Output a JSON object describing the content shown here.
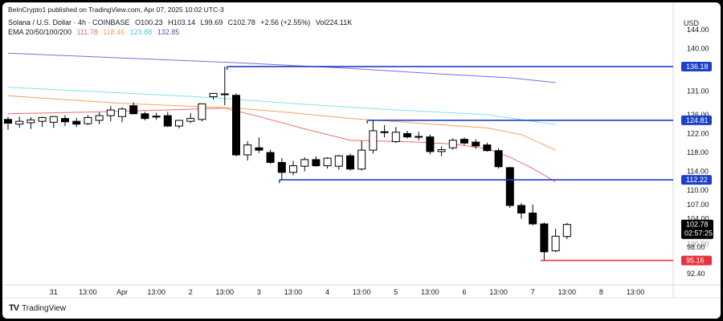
{
  "header": {
    "published": "BeInCrypto1 published on TradingView.com, Apr 07, 2025 10:02 UTC-3",
    "symbol": "Solana / U.S. Dollar · 4h · COINBASE",
    "open": "O100.23",
    "high": "H103.14",
    "low": "L99.69",
    "close": "C102.78",
    "change": "+2.56 (+2.55%)",
    "volume": "Vol224.11K",
    "ema_label": "EMA 20/50/100/200",
    "ema_values": [
      "111.78",
      "118.46",
      "123.88",
      "132.85"
    ],
    "currency": "USD"
  },
  "brand": {
    "name": "TradingView",
    "logo": "TV"
  },
  "colors": {
    "up": "#ffffff",
    "down": "#000000",
    "candle_border": "#000000",
    "ema20": "#ee6a6a",
    "ema50": "#f5a35c",
    "ema100": "#7fe3ee",
    "ema200": "#7a6fcf",
    "hline": "#1e40c8",
    "support_red": "#e8323d",
    "countdown_bg": "#000000"
  },
  "chart_data": {
    "type": "candlestick",
    "title": "",
    "ylim": [
      90,
      145
    ],
    "y_ticks": [
      "144.00",
      "140.00",
      "131.00",
      "126.00",
      "122.00",
      "118.00",
      "114.00",
      "110.00",
      "107.00",
      "104.00",
      "98.00",
      "92.40"
    ],
    "y_tick_values": [
      144,
      140,
      131,
      126,
      122,
      118,
      114,
      110,
      107,
      104,
      98,
      92.4
    ],
    "x_ticks": [
      {
        "label": "31",
        "t": 4
      },
      {
        "label": "13:00",
        "t": 7
      },
      {
        "label": "Apr",
        "t": 10
      },
      {
        "label": "13:00",
        "t": 13
      },
      {
        "label": "2",
        "t": 16
      },
      {
        "label": "13:00",
        "t": 19
      },
      {
        "label": "3",
        "t": 22
      },
      {
        "label": "13:00",
        "t": 25
      },
      {
        "label": "4",
        "t": 28
      },
      {
        "label": "13:00",
        "t": 31
      },
      {
        "label": "5",
        "t": 34
      },
      {
        "label": "13:00",
        "t": 37
      },
      {
        "label": "6",
        "t": 40
      },
      {
        "label": "13:00",
        "t": 43
      },
      {
        "label": "7",
        "t": 46
      },
      {
        "label": "13:00",
        "t": 49
      },
      {
        "label": "8",
        "t": 52
      },
      {
        "label": "13:00",
        "t": 55
      }
    ],
    "candles": [
      {
        "o": 125.0,
        "h": 125.5,
        "l": 122.8,
        "c": 124.2
      },
      {
        "o": 124.0,
        "h": 125.6,
        "l": 123.2,
        "c": 124.6
      },
      {
        "o": 124.3,
        "h": 125.5,
        "l": 123.0,
        "c": 124.9
      },
      {
        "o": 124.6,
        "h": 125.6,
        "l": 123.4,
        "c": 125.4
      },
      {
        "o": 124.4,
        "h": 125.4,
        "l": 123.2,
        "c": 125.6
      },
      {
        "o": 125.2,
        "h": 125.9,
        "l": 123.6,
        "c": 124.5
      },
      {
        "o": 124.6,
        "h": 125.3,
        "l": 123.4,
        "c": 124.0
      },
      {
        "o": 124.1,
        "h": 125.9,
        "l": 123.8,
        "c": 125.4
      },
      {
        "o": 124.8,
        "h": 126.5,
        "l": 124.0,
        "c": 125.8
      },
      {
        "o": 125.8,
        "h": 127.8,
        "l": 124.6,
        "c": 127.0
      },
      {
        "o": 125.6,
        "h": 127.6,
        "l": 124.4,
        "c": 127.2
      },
      {
        "o": 127.9,
        "h": 128.6,
        "l": 126.2,
        "c": 126.2
      },
      {
        "o": 126.2,
        "h": 126.6,
        "l": 124.8,
        "c": 125.2
      },
      {
        "o": 125.7,
        "h": 126.4,
        "l": 124.9,
        "c": 125.5
      },
      {
        "o": 125.8,
        "h": 126.6,
        "l": 123.4,
        "c": 123.6
      },
      {
        "o": 123.6,
        "h": 124.9,
        "l": 123.1,
        "c": 124.8
      },
      {
        "o": 124.6,
        "h": 126.3,
        "l": 124.2,
        "c": 125.2
      },
      {
        "o": 125.0,
        "h": 128.4,
        "l": 124.6,
        "c": 128.3
      },
      {
        "o": 129.8,
        "h": 130.6,
        "l": 129.2,
        "c": 130.5
      },
      {
        "o": 130.4,
        "h": 136.2,
        "l": 128.0,
        "c": 130.3
      },
      {
        "o": 130.1,
        "h": 130.5,
        "l": 117.2,
        "c": 117.5
      },
      {
        "o": 117.5,
        "h": 120.4,
        "l": 116.3,
        "c": 119.6
      },
      {
        "o": 119.0,
        "h": 121.2,
        "l": 117.9,
        "c": 118.5
      },
      {
        "o": 118.0,
        "h": 118.6,
        "l": 115.6,
        "c": 115.9
      },
      {
        "o": 115.9,
        "h": 116.8,
        "l": 112.3,
        "c": 113.8
      },
      {
        "o": 113.8,
        "h": 116.2,
        "l": 113.2,
        "c": 115.2
      },
      {
        "o": 115.1,
        "h": 117.0,
        "l": 114.0,
        "c": 116.5
      },
      {
        "o": 116.5,
        "h": 117.2,
        "l": 115.0,
        "c": 115.2
      },
      {
        "o": 115.2,
        "h": 117.0,
        "l": 114.6,
        "c": 116.8
      },
      {
        "o": 115.1,
        "h": 117.5,
        "l": 114.4,
        "c": 117.3
      },
      {
        "o": 117.3,
        "h": 117.8,
        "l": 114.2,
        "c": 114.5
      },
      {
        "o": 114.5,
        "h": 120.5,
        "l": 114.2,
        "c": 118.5
      },
      {
        "o": 118.5,
        "h": 124.8,
        "l": 117.8,
        "c": 122.6
      },
      {
        "o": 122.4,
        "h": 123.8,
        "l": 121.2,
        "c": 122.2
      },
      {
        "o": 120.3,
        "h": 123.4,
        "l": 120.0,
        "c": 122.3
      },
      {
        "o": 122.0,
        "h": 122.6,
        "l": 121.0,
        "c": 121.3
      },
      {
        "o": 121.3,
        "h": 122.4,
        "l": 120.6,
        "c": 121.4
      },
      {
        "o": 121.3,
        "h": 121.8,
        "l": 117.6,
        "c": 118.2
      },
      {
        "o": 118.2,
        "h": 119.3,
        "l": 117.2,
        "c": 118.6
      },
      {
        "o": 119.0,
        "h": 121.0,
        "l": 118.6,
        "c": 120.6
      },
      {
        "o": 120.8,
        "h": 121.2,
        "l": 119.6,
        "c": 120.0
      },
      {
        "o": 120.2,
        "h": 120.8,
        "l": 118.8,
        "c": 119.4
      },
      {
        "o": 119.6,
        "h": 120.1,
        "l": 118.2,
        "c": 118.4
      },
      {
        "o": 118.4,
        "h": 118.9,
        "l": 114.6,
        "c": 115.0
      },
      {
        "o": 114.8,
        "h": 115.0,
        "l": 106.3,
        "c": 106.8
      },
      {
        "o": 106.8,
        "h": 107.3,
        "l": 104.0,
        "c": 105.2
      },
      {
        "o": 105.2,
        "h": 107.0,
        "l": 102.6,
        "c": 102.9
      },
      {
        "o": 102.9,
        "h": 103.2,
        "l": 95.2,
        "c": 97.0
      },
      {
        "o": 97.2,
        "h": 101.9,
        "l": 96.9,
        "c": 100.3
      },
      {
        "o": 100.23,
        "h": 103.14,
        "l": 99.69,
        "c": 102.78
      }
    ],
    "ema": [
      {
        "name": "EMA 20",
        "color": "#ee6a6a",
        "points": [
          [
            0,
            126.2
          ],
          [
            8,
            126.6
          ],
          [
            14,
            127.0
          ],
          [
            19,
            127.4
          ],
          [
            22,
            125.6
          ],
          [
            26,
            123.0
          ],
          [
            30,
            120.6
          ],
          [
            36,
            120.2
          ],
          [
            39,
            119.8
          ],
          [
            42,
            118.8
          ],
          [
            44,
            117.0
          ],
          [
            46,
            114.6
          ],
          [
            48,
            111.8
          ]
        ]
      },
      {
        "name": "EMA 50",
        "color": "#f5a35c",
        "points": [
          [
            0,
            130.0
          ],
          [
            10,
            128.4
          ],
          [
            20,
            127.4
          ],
          [
            24,
            126.6
          ],
          [
            30,
            125.2
          ],
          [
            36,
            124.2
          ],
          [
            42,
            123.2
          ],
          [
            45,
            121.8
          ],
          [
            48,
            118.5
          ]
        ]
      },
      {
        "name": "EMA 100",
        "color": "#7fe3ee",
        "points": [
          [
            0,
            131.8
          ],
          [
            10,
            130.6
          ],
          [
            18,
            129.6
          ],
          [
            26,
            128.2
          ],
          [
            34,
            127.0
          ],
          [
            42,
            126.0
          ],
          [
            48,
            123.9
          ]
        ]
      },
      {
        "name": "EMA 200",
        "color": "#7a6fcf",
        "points": [
          [
            0,
            139.0
          ],
          [
            10,
            138.0
          ],
          [
            20,
            137.0
          ],
          [
            30,
            135.8
          ],
          [
            38,
            134.6
          ],
          [
            44,
            133.8
          ],
          [
            48,
            132.8
          ]
        ]
      }
    ],
    "levels": [
      {
        "price": 136.18,
        "label": "136.18",
        "from": 19.2,
        "color": "#1e40c8"
      },
      {
        "price": 124.81,
        "label": "124.81",
        "from": 31.5,
        "color": "#1e40c8"
      },
      {
        "price": 112.22,
        "label": "112.22",
        "from": 23.8,
        "color": "#1e40c8"
      },
      {
        "price": 95.16,
        "label": "95.16",
        "from": 46.7,
        "color": "#e8323d"
      }
    ],
    "price_label": {
      "price": 102.78,
      "label": "102.78",
      "countdown": "02:57:25",
      "prev": "100.00"
    }
  }
}
